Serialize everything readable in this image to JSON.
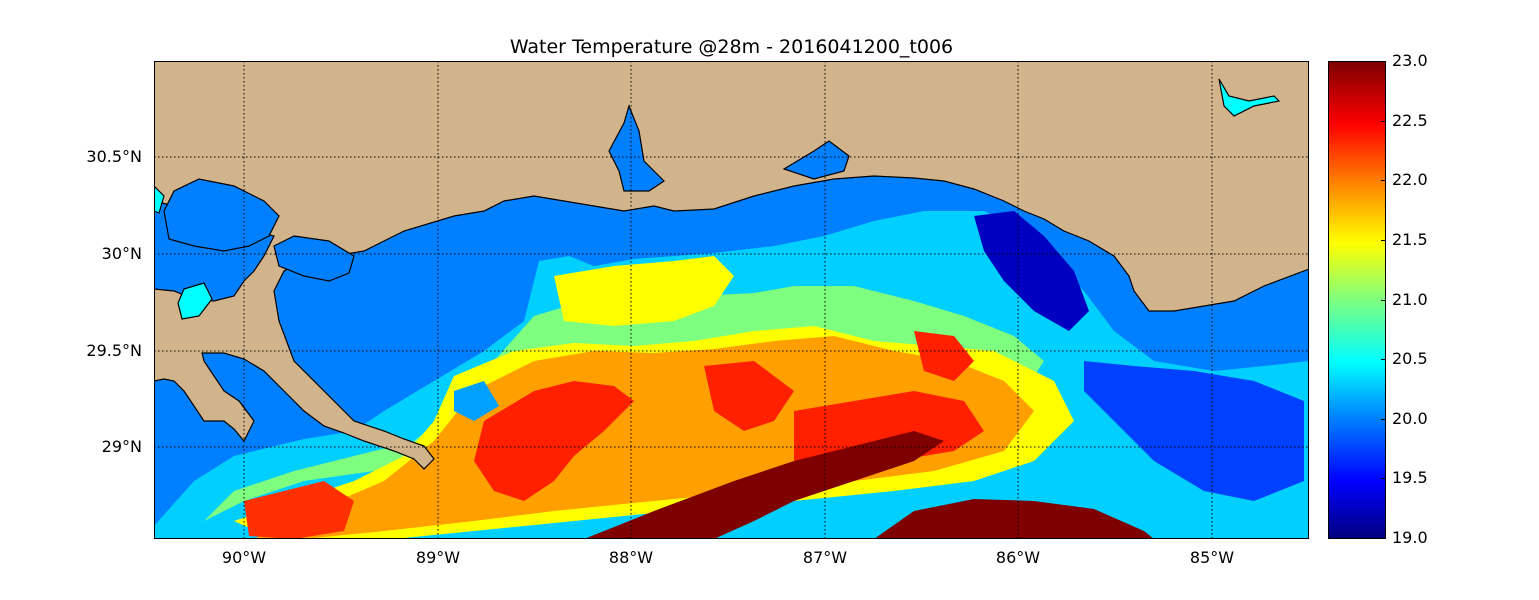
{
  "title": "Water Temperature @28m - 2016041200_t006",
  "map": {
    "lon_range": [
      -90.5,
      -84.5
    ],
    "lat_range": [
      28.55,
      31.0
    ],
    "lon_ticks": [
      {
        "value": -90,
        "label": "90°W"
      },
      {
        "value": -89,
        "label": "89°W"
      },
      {
        "value": -88,
        "label": "88°W"
      },
      {
        "value": -87,
        "label": "87°W"
      },
      {
        "value": -86,
        "label": "86°W"
      },
      {
        "value": -85,
        "label": "85°W"
      }
    ],
    "lat_ticks": [
      {
        "value": 30.5,
        "label": "30.5°N"
      },
      {
        "value": 30.0,
        "label": "30°N"
      },
      {
        "value": 29.5,
        "label": "29.5°N"
      },
      {
        "value": 29.0,
        "label": "29°N"
      }
    ],
    "land_color": "#d2b48c",
    "ocean_color": "#0080ff",
    "lake_color": "#00ffff",
    "gridlines": "dotted"
  },
  "colorbar": {
    "min": 19.0,
    "max": 23.0,
    "colormap": "jet",
    "ticks": [
      "19.0",
      "19.5",
      "20.0",
      "20.5",
      "21.0",
      "21.5",
      "22.0",
      "22.5",
      "23.0"
    ]
  }
}
